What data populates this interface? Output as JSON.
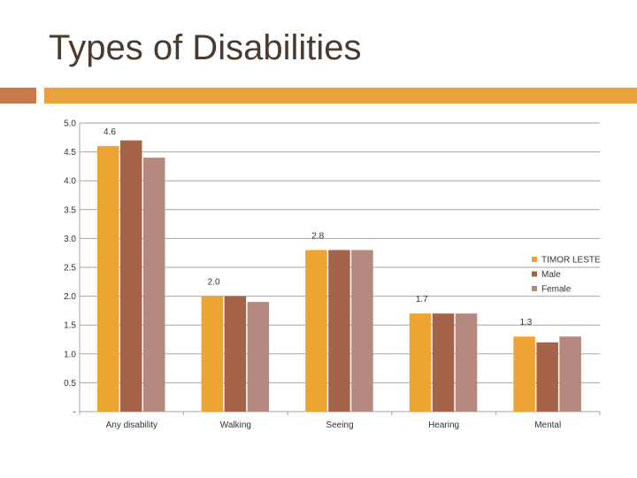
{
  "title": "Types of Disabilities",
  "colors": {
    "title": "#4a3b30",
    "accent_left": "#c97a4c",
    "accent_right": "#e8a33c",
    "grid": "#a6a6a6"
  },
  "chart_data": {
    "type": "bar",
    "title": "",
    "xlabel": "",
    "ylabel": "",
    "categories": [
      "Any  disability",
      "Walking",
      "Seeing",
      "Hearing",
      "Mental"
    ],
    "series": [
      {
        "name": "TIMOR LESTE",
        "color": "#eda433",
        "values": [
          4.6,
          2.0,
          2.8,
          1.7,
          1.3
        ]
      },
      {
        "name": "Male",
        "color": "#a5634a",
        "values": [
          4.7,
          2.0,
          2.8,
          1.7,
          1.2
        ]
      },
      {
        "name": "Female",
        "color": "#b5897f",
        "values": [
          4.4,
          1.9,
          2.8,
          1.7,
          1.3
        ]
      }
    ],
    "data_labels": [
      "4.6",
      "2.0",
      "2.8",
      "1.7",
      "1.3"
    ],
    "y_ticks": [
      "-",
      "0.5",
      "1.0",
      "1.5",
      "2.0",
      "2.5",
      "3.0",
      "3.5",
      "4.0",
      "4.5",
      "5.0"
    ],
    "ylim": [
      0,
      5
    ],
    "grid": true,
    "legend_position": "right"
  }
}
